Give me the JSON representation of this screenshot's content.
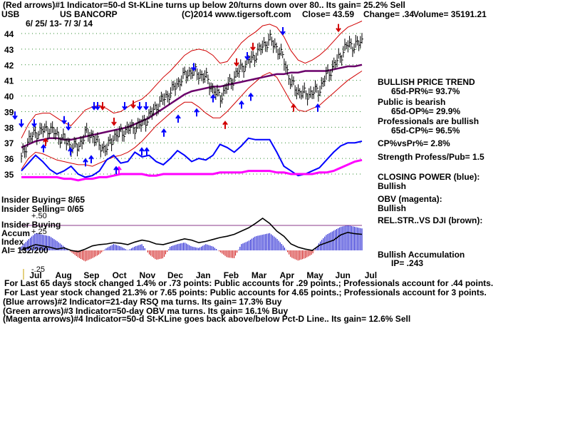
{
  "header": {
    "line1": "(Red arrows)#1 Indicator=50-d St-KLine turns up below 20/turns down over 80..  Its gain= 25.2% Sell",
    "symbol": "USB",
    "company": "US BANCORP",
    "credit": "(C)2014 www.tigersoft.com",
    "close": "Close=  43.59",
    "change": "Change= .34",
    "volume": "Volume= 35191.21",
    "dates": "6/ 25/ 13-  7/ 3/ 14"
  },
  "right_panel": {
    "trend_title": "BULLISH PRICE TREND",
    "pr": "65d-PR%= 93.7%",
    "public_title": "Public is bearish",
    "op": "65d-OP%= 29.9%",
    "pros_title": "Professionals are bullish",
    "cp": "65d-CP%= 96.5%",
    "cpvspr": "CP%vsPr%=  2.8%",
    "strength": "Strength Profess/Pub= 1.5",
    "closing_power": "CLOSING POWER (blue):",
    "closing_power_val": "Bullish",
    "obv": "OBV (magenta):",
    "obv_val": "Bullish",
    "relstr": "REL.STR..VS DJI (brown):",
    "accum_title": "Bullish Accumulation",
    "ip": "IP=  .243"
  },
  "left_labels": {
    "insider_buying": "Insider Buying= 8/65",
    "insider_selling": "Insider Selling= 0/65",
    "plus50": "+.50",
    "insider_buying2": "Insider Buying",
    "accum": "Accum",
    "plus25": "+.25",
    "index": "Index",
    "ai": "AI= 132/200",
    "minus25": "-.25"
  },
  "footer": {
    "line1": "For Last 65 days stock changed  1.4% or  .73 points:  Public accounts for  .29 points.;  Professionals account for  .44 points.",
    "line2": "For Last year stock changed  21.3% or  7.65 points:  Public accounts for  4.65 points.;  Professionals account for  3 points.",
    "line3": "(Blue arrows)#2 Indicator=21-day RSQ ma turns.  Its gain= 17.3% Buy",
    "line4": "(Green arrows)#3 Indicator=50-day OBV ma turns.  Its gain= 16.1% Buy",
    "line5": "(Magenta arrows)#4 Indicator=50-d St-KLine goes back above/below Pct-D Line..  Its gain= 12.6% Sell"
  },
  "chart_data": {
    "type": "line",
    "y_ticks": [
      "44",
      "43",
      "42",
      "41",
      "40",
      "39",
      "38",
      "37",
      "36",
      "35"
    ],
    "ylim": [
      34.6,
      44.3
    ],
    "x_ticks": [
      "Jul",
      "Aug",
      "Sep",
      "Oct",
      "Nov",
      "Dec",
      "Jan",
      "Feb",
      "Mar",
      "Apr",
      "May",
      "Jun",
      "Jul"
    ],
    "grid": true,
    "series": [
      {
        "name": "price",
        "color": "#000000",
        "values": [
          36.0,
          37.2,
          37.6,
          37.8,
          37.9,
          37.5,
          37.2,
          36.8,
          36.7,
          37.6,
          37.5,
          36.8,
          36.6,
          37.4,
          37.6,
          37.9,
          38.0,
          38.2,
          38.7,
          39.3,
          39.8,
          40.2,
          40.8,
          41.3,
          41.6,
          41.4,
          41.2,
          40.4,
          39.9,
          40.6,
          41.2,
          41.8,
          42.2,
          42.6,
          43.2,
          43.6,
          43.1,
          42.3,
          40.8,
          40.3,
          40.1,
          40.2,
          40.4,
          41.3,
          41.9,
          42.6,
          43.3,
          43.2,
          43.5
        ]
      },
      {
        "name": "upper band",
        "color": "#d10000",
        "values": [
          37.3,
          38.2,
          38.8,
          38.9,
          38.9,
          38.6,
          38.3,
          38.1,
          38.6,
          39.1,
          39.3,
          39.4,
          39.2,
          38.9,
          39.0,
          39.3,
          39.6,
          39.8,
          40.2,
          40.7,
          41.2,
          41.6,
          42.1,
          42.6,
          42.9,
          43.0,
          42.9,
          42.6,
          42.1,
          42.2,
          42.8,
          43.4,
          43.8,
          44.1,
          44.5,
          44.6,
          44.4,
          43.8,
          42.9,
          42.3,
          42.1,
          42.3,
          42.6,
          43.0,
          43.5,
          44.0,
          44.4,
          44.6,
          44.8
        ]
      },
      {
        "name": "lower band",
        "color": "#d10000",
        "values": [
          35.3,
          36.0,
          36.4,
          36.3,
          36.1,
          35.9,
          35.8,
          35.7,
          35.6,
          35.6,
          35.5,
          35.7,
          35.9,
          36.1,
          36.2,
          36.4,
          36.7,
          37.1,
          37.6,
          38.1,
          38.5,
          38.9,
          39.3,
          39.6,
          39.6,
          39.3,
          38.9,
          38.6,
          38.6,
          39.0,
          39.5,
          40.0,
          40.5,
          40.9,
          41.3,
          41.5,
          41.2,
          40.4,
          39.6,
          39.1,
          39.0,
          39.2,
          39.4,
          39.8,
          40.2,
          40.6,
          41.0,
          41.3,
          41.6
        ]
      },
      {
        "name": "ma",
        "color": "#6a006a",
        "values": [
          36.7,
          36.9,
          37.1,
          37.2,
          37.3,
          37.3,
          37.2,
          37.2,
          37.3,
          37.4,
          37.5,
          37.6,
          37.7,
          37.8,
          37.9,
          38.0,
          38.2,
          38.4,
          38.6,
          38.9,
          39.2,
          39.5,
          39.8,
          40.1,
          40.3,
          40.4,
          40.5,
          40.6,
          40.6,
          40.7,
          40.8,
          40.9,
          41.0,
          41.1,
          41.2,
          41.3,
          41.4,
          41.4,
          41.5,
          41.5,
          41.6,
          41.6,
          41.6,
          41.6,
          41.7,
          41.8,
          41.9,
          41.9,
          42.0
        ]
      },
      {
        "name": "closing power",
        "color": "#0000ff",
        "values": [
          35.2,
          35.7,
          36.2,
          35.8,
          35.3,
          35.0,
          35.2,
          35.5,
          35.0,
          34.8,
          34.9,
          35.2,
          35.9,
          36.2,
          35.7,
          35.8,
          36.4,
          36.1,
          36.2,
          35.8,
          35.6,
          36.0,
          36.5,
          36.2,
          35.8,
          36.0,
          35.9,
          36.2,
          36.9,
          36.7,
          36.4,
          36.8,
          37.3,
          37.2,
          37.2,
          37.2,
          36.4,
          35.5,
          35.2,
          34.9,
          35.0,
          35.2,
          35.4,
          35.9,
          36.4,
          36.8,
          37.0,
          37.0,
          37.1
        ]
      },
      {
        "name": "obv",
        "color": "#ff00ff",
        "values": [
          34.8,
          34.8,
          34.8,
          34.8,
          34.8,
          34.8,
          34.7,
          34.7,
          34.6,
          34.7,
          34.7,
          34.8,
          34.8,
          34.9,
          35.0,
          35.0,
          35.0,
          35.0,
          34.9,
          34.9,
          35.0,
          35.0,
          35.0,
          35.0,
          35.0,
          35.0,
          35.0,
          35.0,
          35.1,
          35.1,
          35.1,
          35.1,
          35.2,
          35.2,
          35.2,
          35.2,
          35.1,
          35.1,
          35.0,
          35.0,
          35.0,
          35.0,
          35.1,
          35.1,
          35.2,
          35.4,
          35.6,
          35.8,
          35.9
        ]
      }
    ],
    "accumulation": {
      "ylim": [
        -0.3,
        0.55
      ],
      "values": [
        0.05,
        0.14,
        0.22,
        0.2,
        0.18,
        0.12,
        0.05,
        -0.02,
        -0.09,
        -0.14,
        -0.1,
        -0.05,
        0.03,
        0.08,
        0.05,
        0.0,
        0.05,
        0.08,
        -0.05,
        -0.12,
        -0.1,
        0.05,
        0.08,
        0.1,
        0.05,
        0.03,
        0.08,
        0.05,
        -0.02,
        -0.09,
        -0.1,
        0.08,
        0.12,
        0.18,
        0.2,
        0.22,
        0.15,
        0.05,
        -0.09,
        -0.13,
        -0.1,
        -0.05,
        0.1,
        0.2,
        0.25,
        0.3,
        0.32,
        0.3,
        0.28
      ]
    },
    "relative_strength": [
      0.0,
      0.05,
      0.09,
      0.07,
      0.05,
      0.02,
      0.04,
      0.0,
      -0.02,
      0.02,
      0.07,
      0.09,
      0.1,
      0.12,
      0.11,
      0.09,
      0.13,
      0.16,
      0.14,
      0.1,
      0.09,
      0.12,
      0.15,
      0.18,
      0.16,
      0.12,
      0.14,
      0.17,
      0.2,
      0.22,
      0.25,
      0.3,
      0.35,
      0.42,
      0.5,
      0.42,
      0.3,
      0.22,
      0.1,
      0.05,
      0.02,
      0.0,
      0.08,
      0.12,
      0.16,
      0.24,
      0.28,
      0.26,
      0.25
    ],
    "arrows": [
      {
        "x": 21,
        "dir": "down",
        "color": "#0000ff",
        "price": 38.6
      },
      {
        "x": 30,
        "dir": "down",
        "color": "#0000ff",
        "price": 38.1
      },
      {
        "x": 48,
        "dir": "down",
        "color": "#0000ff",
        "price": 38.1
      },
      {
        "x": 64,
        "dir": "up",
        "color": "#d10000",
        "price": 37.2
      },
      {
        "x": 61,
        "dir": "up",
        "color": "#0000ff",
        "price": 36.8
      },
      {
        "x": 90,
        "dir": "down",
        "color": "#0000ff",
        "price": 38.3
      },
      {
        "x": 96,
        "dir": "down",
        "color": "#0000ff",
        "price": 37.9
      },
      {
        "x": 99,
        "dir": "up",
        "color": "#0000ff",
        "price": 36.6
      },
      {
        "x": 120,
        "dir": "up",
        "color": "#0000ff",
        "price": 35.9
      },
      {
        "x": 128,
        "dir": "up",
        "color": "#0000ff",
        "price": 36.1
      },
      {
        "x": 132,
        "dir": "down",
        "color": "#0000ff",
        "price": 39.2
      },
      {
        "x": 137,
        "dir": "down",
        "color": "#0000ff",
        "price": 39.2
      },
      {
        "x": 144,
        "dir": "down",
        "color": "#d10000",
        "price": 39.2
      },
      {
        "x": 160,
        "dir": "down",
        "color": "#d10000",
        "price": 38.2
      },
      {
        "x": 167,
        "dir": "up",
        "color": "#ff00ff",
        "price": 35.4
      },
      {
        "x": 163,
        "dir": "up",
        "color": "#0000ff",
        "price": 35.4
      },
      {
        "x": 175,
        "dir": "down",
        "color": "#0000ff",
        "price": 39.2
      },
      {
        "x": 187,
        "dir": "down",
        "color": "#d10000",
        "price": 39.3
      },
      {
        "x": 196,
        "dir": "down",
        "color": "#0000ff",
        "price": 39.2
      },
      {
        "x": 205,
        "dir": "down",
        "color": "#0000ff",
        "price": 39.2
      },
      {
        "x": 199,
        "dir": "up",
        "color": "#0000ff",
        "price": 36.6
      },
      {
        "x": 206,
        "dir": "up",
        "color": "#0000ff",
        "price": 36.6
      },
      {
        "x": 230,
        "dir": "up",
        "color": "#0000ff",
        "price": 37.8
      },
      {
        "x": 250,
        "dir": "up",
        "color": "#0000ff",
        "price": 38.7
      },
      {
        "x": 272,
        "dir": "down",
        "color": "#0000ff",
        "price": 41.7
      },
      {
        "x": 276,
        "dir": "up",
        "color": "#0000ff",
        "price": 39.1
      },
      {
        "x": 299,
        "dir": "up",
        "color": "#0000ff",
        "price": 40.0
      },
      {
        "x": 316,
        "dir": "up",
        "color": "#d10000",
        "price": 38.3
      },
      {
        "x": 332,
        "dir": "down",
        "color": "#d10000",
        "price": 42.0
      },
      {
        "x": 339,
        "dir": "up",
        "color": "#0000ff",
        "price": 39.6
      },
      {
        "x": 347,
        "dir": "down",
        "color": "#0000ff",
        "price": 42.4
      },
      {
        "x": 355,
        "dir": "down",
        "color": "#d10000",
        "price": 43.0
      },
      {
        "x": 352,
        "dir": "up",
        "color": "#0000ff",
        "price": 40.1
      },
      {
        "x": 397,
        "dir": "down",
        "color": "#0000ff",
        "price": 44.0
      },
      {
        "x": 412,
        "dir": "up",
        "color": "#d10000",
        "price": 39.4
      },
      {
        "x": 446,
        "dir": "up",
        "color": "#0000ff",
        "price": 39.4
      },
      {
        "x": 475,
        "dir": "down",
        "color": "#d10000",
        "price": 44.2
      }
    ]
  }
}
